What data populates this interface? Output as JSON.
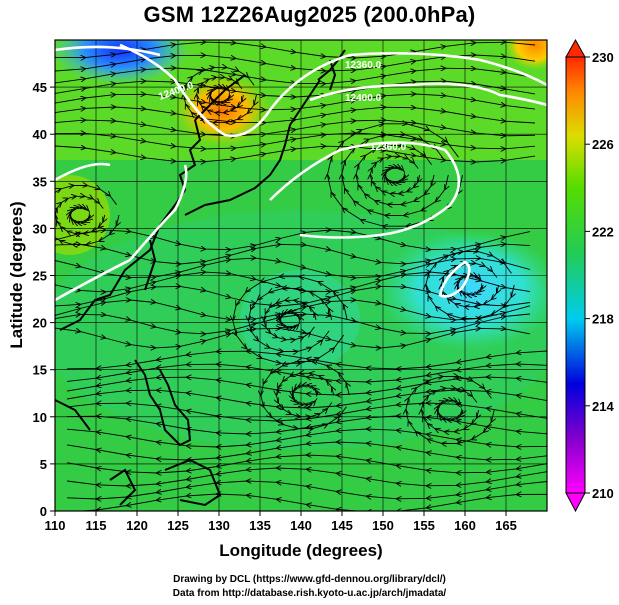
{
  "title": "GSM 12Z26Aug2025 (200.0hPa)",
  "axes": {
    "xlabel": "Longitude (degrees)",
    "ylabel": "Latitude  (degrees)",
    "xticks": [
      "110",
      "115",
      "120",
      "125",
      "130",
      "135",
      "140",
      "145",
      "150",
      "155",
      "160",
      "165"
    ],
    "yticks": [
      "0",
      "5",
      "10",
      "15",
      "20",
      "25",
      "30",
      "35",
      "40",
      "45"
    ],
    "xlim": [
      110,
      170
    ],
    "ylim": [
      0,
      50
    ]
  },
  "colorbar": {
    "ticks": [
      "230",
      "226",
      "222",
      "218",
      "214",
      "210"
    ],
    "range": [
      210,
      230
    ]
  },
  "contour_labels": [
    "12360.0",
    "12400.0",
    "12400.0",
    "12360.0"
  ],
  "credits": {
    "line1": "Drawing by DCL (https://www.gfd-dennou.org/library/dcl/)",
    "line2": "Data from http://database.rish.kyoto-u.ac.jp/arch/jmadata/"
  },
  "colors": {
    "low": "#ff00ff",
    "blue": "#1a1aff",
    "cyan": "#20e6e6",
    "green": "#33cc33",
    "yellow": "#dddd00",
    "orange": "#ff9900",
    "high": "#ff2200"
  }
}
